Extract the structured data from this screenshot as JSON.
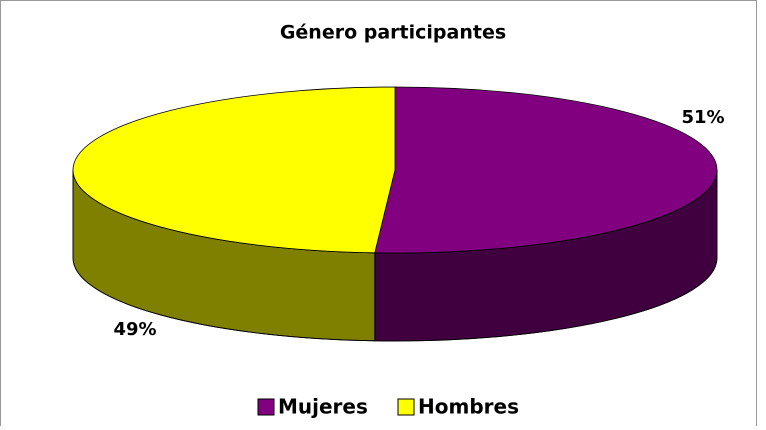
{
  "chart_data": {
    "type": "pie3d",
    "title": "Género participantes",
    "categories": [
      "Mujeres",
      "Hombres"
    ],
    "values": [
      51,
      49
    ],
    "value_labels": [
      "51%",
      "49%"
    ],
    "colors": [
      "#800080",
      "#ffff00"
    ],
    "legend": "bottom"
  }
}
